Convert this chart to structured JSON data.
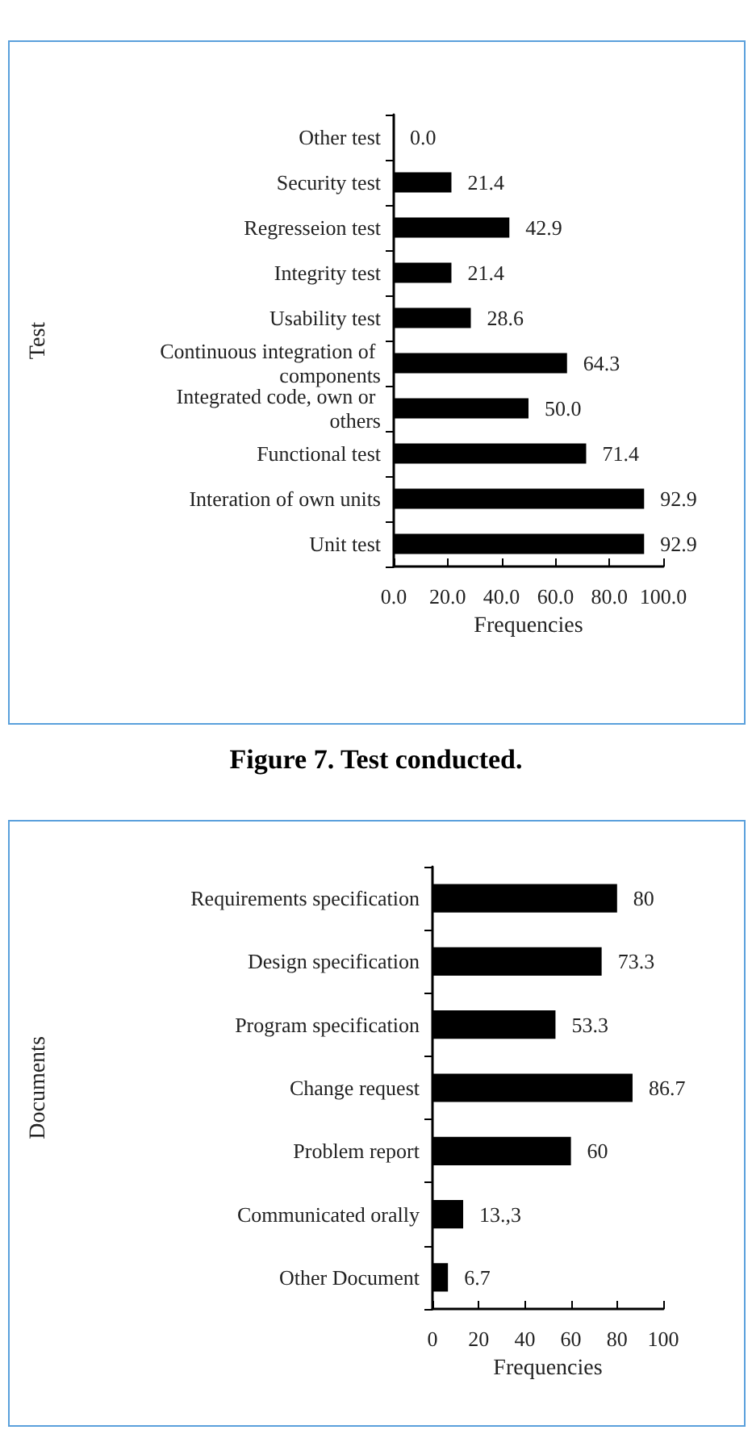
{
  "chart_data": [
    {
      "type": "bar",
      "orientation": "horizontal",
      "ylabel": "Test",
      "xlabel": "Frequencies",
      "annotations": [
        "Figure 7. Test conducted."
      ],
      "categories": [
        "Other test",
        "Security test",
        "Regresseion test",
        "Integrity test",
        "Usability test",
        "Continuous integration of components",
        "Integrated code, own or others",
        "Functional test",
        "Interation of own units",
        "Unit test"
      ],
      "values": [
        0,
        21.4,
        42.9,
        21.4,
        28.6,
        64.3,
        50.0,
        71.4,
        92.9,
        92.9
      ],
      "value_labels": [
        "0.0",
        "21.4",
        "42.9",
        "21.4",
        "28.6",
        "64.3",
        "50.0",
        "71.4",
        "92.9",
        "92.9"
      ],
      "color": "#000000",
      "xlim": [
        0,
        100
      ],
      "xticks": [
        {
          "value": 0,
          "label": "0.0"
        },
        {
          "value": 20,
          "label": "20.0"
        },
        {
          "value": 40,
          "label": "40.0"
        },
        {
          "value": 60,
          "label": "60.0"
        },
        {
          "value": 80,
          "label": "80.0"
        },
        {
          "value": 100,
          "label": "100.0"
        }
      ],
      "grid": false
    },
    {
      "type": "bar",
      "orientation": "horizontal",
      "ylabel": "Documents",
      "xlabel": "Frequencies",
      "categories": [
        "Requirements specification",
        "Design specification",
        "Program specification",
        "Change request",
        "Problem report",
        "Communicated orally",
        "Other Document"
      ],
      "values": [
        80,
        73.3,
        53.3,
        86.7,
        60,
        13.3,
        6.7
      ],
      "value_labels": [
        "80",
        "73.3",
        "53.3",
        "86.7",
        "60",
        "13.,3",
        "6.7"
      ],
      "color": "#000000",
      "xlim": [
        0,
        100
      ],
      "xticks": [
        0,
        20,
        40,
        60,
        80,
        100
      ],
      "grid": false
    }
  ]
}
